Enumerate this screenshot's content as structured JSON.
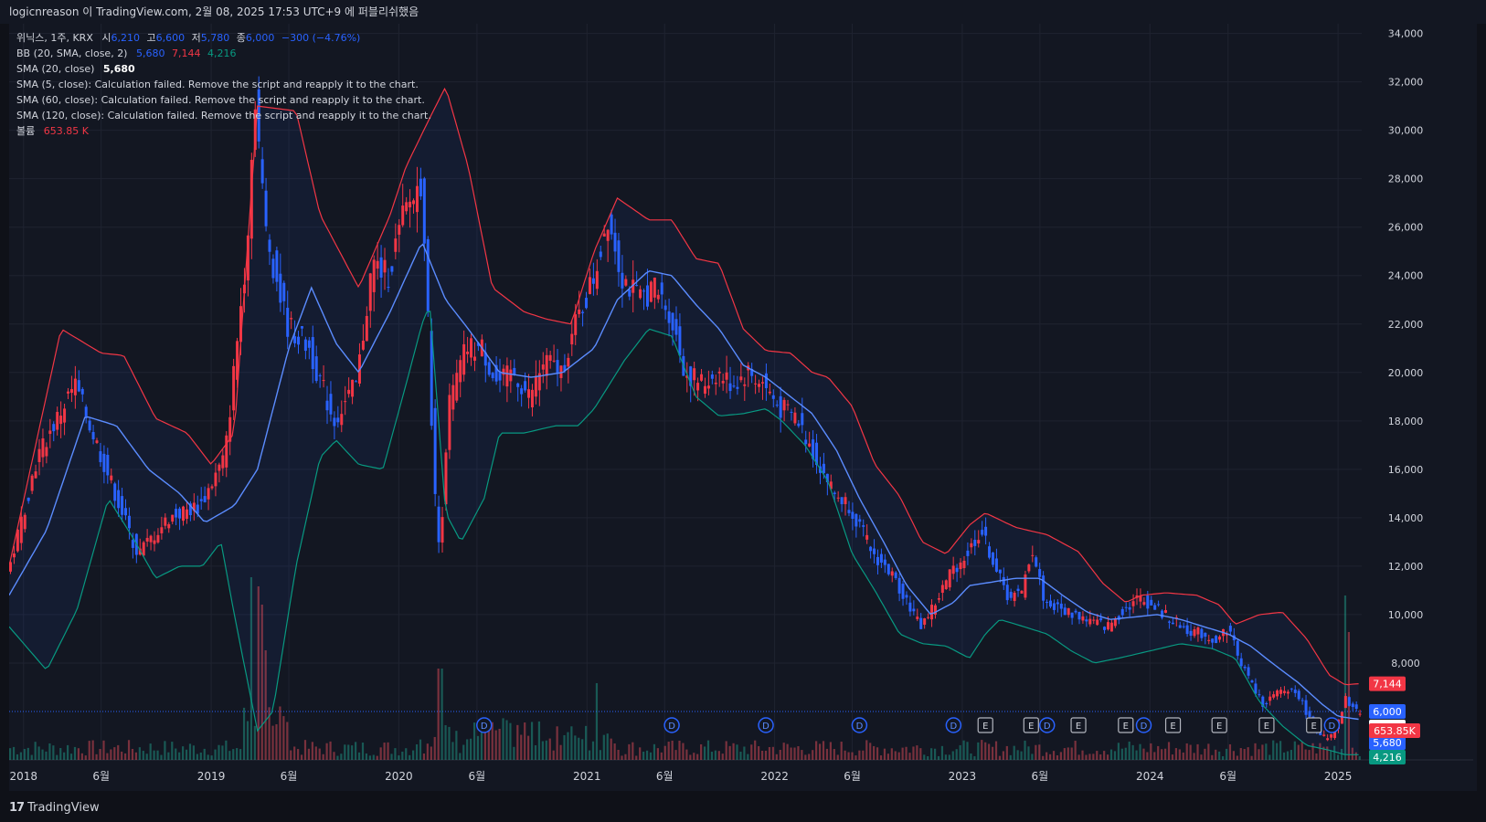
{
  "header": {
    "publish_text": "logicnreason 이 TradingView.com, 2월 08, 2025 17:53 UTC+9 에 퍼블리쉬했음"
  },
  "legend": {
    "symbol": "위닉스, 1주, KRX",
    "o_label": "시",
    "o": "6,210",
    "h_label": "고",
    "h": "6,600",
    "l_label": "저",
    "l": "5,780",
    "c_label": "종",
    "c": "6,000",
    "change": "−300 (−4.76%)",
    "bb_label": "BB (20, SMA, close, 2)",
    "bb_mid": "5,680",
    "bb_up": "7,144",
    "bb_low": "4,216",
    "sma20_label": "SMA (20, close)",
    "sma20_val": "5,680",
    "sma5_msg": "SMA (5, close): Calculation failed. Remove the script and reapply it to the chart.",
    "sma60_msg": "SMA (60, close): Calculation failed. Remove the script and reapply it to the chart.",
    "sma120_msg": "SMA (120, close): Calculation failed. Remove the script and reapply it to the chart.",
    "vol_label": "볼륨",
    "vol_val": "653.85 K"
  },
  "footer": {
    "brand": "TradingView",
    "mark": "17"
  },
  "colors": {
    "up": "#f23645",
    "down": "#2962ff",
    "bb_upper": "#f23645",
    "bb_lower": "#089981",
    "sma": "#5b8cff",
    "grid": "#1f2330",
    "text": "#d1d4dc",
    "bg": "#131722"
  },
  "chart_data": {
    "type": "candlestick",
    "interval": "1주",
    "y_ticks": [
      8000,
      10000,
      12000,
      14000,
      16000,
      18000,
      20000,
      22000,
      24000,
      26000,
      28000,
      30000,
      32000,
      34000
    ],
    "y_tick_labels": [
      "8,000",
      "10,000",
      "12,000",
      "14,000",
      "16,000",
      "18,000",
      "20,000",
      "22,000",
      "24,000",
      "26,000",
      "28,000",
      "30,000",
      "32,000",
      "34,000"
    ],
    "ylim": [
      4000,
      34400
    ],
    "x_range": [
      "2017-12-04",
      "2025-02-16"
    ],
    "x_ticks": [
      {
        "date": "2018-01-01",
        "label": "2018"
      },
      {
        "date": "2018-06-01",
        "label": "6월"
      },
      {
        "date": "2019-01-01",
        "label": "2019"
      },
      {
        "date": "2019-06-01",
        "label": "6월"
      },
      {
        "date": "2020-01-01",
        "label": "2020"
      },
      {
        "date": "2020-06-01",
        "label": "6월"
      },
      {
        "date": "2021-01-01",
        "label": "2021"
      },
      {
        "date": "2021-06-01",
        "label": "6월"
      },
      {
        "date": "2022-01-01",
        "label": "2022"
      },
      {
        "date": "2022-06-01",
        "label": "6월"
      },
      {
        "date": "2023-01-01",
        "label": "2023"
      },
      {
        "date": "2023-06-01",
        "label": "6월"
      },
      {
        "date": "2024-01-01",
        "label": "2024"
      },
      {
        "date": "2024-06-01",
        "label": "6월"
      },
      {
        "date": "2025-01-01",
        "label": "2025"
      }
    ],
    "price_anchors": [
      [
        "2017-12-04",
        11500
      ],
      [
        "2018-02-01",
        16500
      ],
      [
        "2018-04-15",
        19500
      ],
      [
        "2018-06-15",
        16000
      ],
      [
        "2018-08-15",
        12500
      ],
      [
        "2018-10-15",
        14000
      ],
      [
        "2018-12-15",
        14500
      ],
      [
        "2019-02-01",
        16500
      ],
      [
        "2019-03-15",
        25000
      ],
      [
        "2019-04-01",
        31500
      ],
      [
        "2019-04-20",
        26000
      ],
      [
        "2019-06-01",
        22000
      ],
      [
        "2019-07-15",
        21000
      ],
      [
        "2019-09-01",
        18000
      ],
      [
        "2019-10-15",
        19500
      ],
      [
        "2019-11-15",
        24500
      ],
      [
        "2019-12-15",
        24000
      ],
      [
        "2020-01-15",
        26500
      ],
      [
        "2020-02-20",
        28000
      ],
      [
        "2020-03-15",
        15000
      ],
      [
        "2020-03-25",
        12500
      ],
      [
        "2020-04-10",
        18500
      ],
      [
        "2020-05-15",
        21000
      ],
      [
        "2020-06-15",
        21000
      ],
      [
        "2020-07-15",
        19500
      ],
      [
        "2020-08-15",
        20000
      ],
      [
        "2020-09-15",
        19000
      ],
      [
        "2020-10-15",
        20500
      ],
      [
        "2020-11-15",
        20000
      ],
      [
        "2020-12-15",
        22000
      ],
      [
        "2021-01-20",
        24000
      ],
      [
        "2021-02-15",
        26500
      ],
      [
        "2021-03-15",
        24000
      ],
      [
        "2021-04-15",
        23000
      ],
      [
        "2021-05-15",
        23500
      ],
      [
        "2021-06-15",
        22500
      ],
      [
        "2021-07-15",
        20000
      ],
      [
        "2021-08-20",
        19500
      ],
      [
        "2021-09-15",
        20000
      ],
      [
        "2021-10-15",
        19500
      ],
      [
        "2021-11-15",
        20000
      ],
      [
        "2021-12-15",
        19500
      ],
      [
        "2022-01-15",
        18500
      ],
      [
        "2022-02-15",
        18200
      ],
      [
        "2022-03-15",
        17000
      ],
      [
        "2022-05-01",
        15000
      ],
      [
        "2022-06-01",
        14500
      ],
      [
        "2022-07-15",
        12500
      ],
      [
        "2022-08-15",
        11800
      ],
      [
        "2022-09-15",
        10800
      ],
      [
        "2022-10-15",
        9500
      ],
      [
        "2022-11-15",
        10500
      ],
      [
        "2022-12-15",
        11800
      ],
      [
        "2023-01-15",
        12500
      ],
      [
        "2023-02-10",
        13500
      ],
      [
        "2023-03-01",
        12500
      ],
      [
        "2023-04-01",
        10800
      ],
      [
        "2023-05-01",
        10800
      ],
      [
        "2023-05-20",
        12800
      ],
      [
        "2023-06-15",
        10500
      ],
      [
        "2023-07-15",
        10200
      ],
      [
        "2023-08-15",
        10000
      ],
      [
        "2023-09-15",
        9700
      ],
      [
        "2023-10-15",
        9500
      ],
      [
        "2023-11-15",
        10200
      ],
      [
        "2023-12-15",
        10700
      ],
      [
        "2024-01-15",
        10300
      ],
      [
        "2024-02-15",
        9800
      ],
      [
        "2024-03-15",
        9400
      ],
      [
        "2024-04-15",
        9200
      ],
      [
        "2024-05-15",
        8900
      ],
      [
        "2024-06-05",
        9500
      ],
      [
        "2024-07-01",
        8000
      ],
      [
        "2024-08-10",
        6300
      ],
      [
        "2024-09-15",
        6800
      ],
      [
        "2024-10-15",
        6900
      ],
      [
        "2024-11-15",
        5500
      ],
      [
        "2024-12-15",
        4800
      ],
      [
        "2025-01-01",
        5200
      ],
      [
        "2025-01-20",
        6500
      ],
      [
        "2025-02-09",
        6000
      ]
    ],
    "bb_upper": [
      [
        "2017-12-04",
        12000
      ],
      [
        "2018-03-15",
        21800
      ],
      [
        "2018-06-01",
        20800
      ],
      [
        "2018-07-15",
        20700
      ],
      [
        "2018-09-15",
        18100
      ],
      [
        "2018-11-15",
        17500
      ],
      [
        "2019-01-01",
        16200
      ],
      [
        "2019-02-15",
        17500
      ],
      [
        "2019-04-01",
        31000
      ],
      [
        "2019-06-15",
        30800
      ],
      [
        "2019-08-01",
        26500
      ],
      [
        "2019-10-15",
        23500
      ],
      [
        "2019-12-15",
        26500
      ],
      [
        "2020-01-15",
        28500
      ],
      [
        "2020-03-01",
        30500
      ],
      [
        "2020-04-01",
        31800
      ],
      [
        "2020-05-15",
        28500
      ],
      [
        "2020-07-01",
        23500
      ],
      [
        "2020-09-01",
        22500
      ],
      [
        "2020-10-15",
        22200
      ],
      [
        "2020-12-01",
        22000
      ],
      [
        "2021-01-15",
        25000
      ],
      [
        "2021-03-01",
        27200
      ],
      [
        "2021-05-01",
        26300
      ],
      [
        "2021-06-15",
        26300
      ],
      [
        "2021-08-01",
        24700
      ],
      [
        "2021-09-15",
        24500
      ],
      [
        "2021-11-01",
        21800
      ],
      [
        "2021-12-15",
        20900
      ],
      [
        "2022-02-01",
        20800
      ],
      [
        "2022-03-15",
        20000
      ],
      [
        "2022-04-15",
        19800
      ],
      [
        "2022-06-01",
        18600
      ],
      [
        "2022-07-15",
        16200
      ],
      [
        "2022-09-01",
        14900
      ],
      [
        "2022-10-15",
        13000
      ],
      [
        "2022-12-01",
        12500
      ],
      [
        "2023-01-15",
        13700
      ],
      [
        "2023-02-15",
        14200
      ],
      [
        "2023-04-15",
        13600
      ],
      [
        "2023-06-15",
        13300
      ],
      [
        "2023-08-15",
        12600
      ],
      [
        "2023-10-01",
        11300
      ],
      [
        "2023-11-15",
        10500
      ],
      [
        "2023-12-15",
        10800
      ],
      [
        "2024-02-01",
        10900
      ],
      [
        "2024-04-01",
        10800
      ],
      [
        "2024-05-15",
        10400
      ],
      [
        "2024-06-15",
        9600
      ],
      [
        "2024-08-01",
        10000
      ],
      [
        "2024-09-15",
        10100
      ],
      [
        "2024-11-01",
        9000
      ],
      [
        "2024-12-15",
        7500
      ],
      [
        "2025-01-15",
        7100
      ],
      [
        "2025-02-09",
        7144
      ]
    ],
    "bb_middle": [
      [
        "2017-12-04",
        10800
      ],
      [
        "2018-02-15",
        13500
      ],
      [
        "2018-05-01",
        18200
      ],
      [
        "2018-07-01",
        17800
      ],
      [
        "2018-09-01",
        16000
      ],
      [
        "2018-11-01",
        15000
      ],
      [
        "2018-12-20",
        13800
      ],
      [
        "2019-02-15",
        14500
      ],
      [
        "2019-04-01",
        16000
      ],
      [
        "2019-06-01",
        21000
      ],
      [
        "2019-07-15",
        23500
      ],
      [
        "2019-09-01",
        21200
      ],
      [
        "2019-10-15",
        20000
      ],
      [
        "2019-12-15",
        22500
      ],
      [
        "2020-02-15",
        25400
      ],
      [
        "2020-04-01",
        23000
      ],
      [
        "2020-05-15",
        21800
      ],
      [
        "2020-07-15",
        20000
      ],
      [
        "2020-09-15",
        19800
      ],
      [
        "2020-11-15",
        20000
      ],
      [
        "2021-01-15",
        21000
      ],
      [
        "2021-03-01",
        23000
      ],
      [
        "2021-05-01",
        24200
      ],
      [
        "2021-06-15",
        24000
      ],
      [
        "2021-08-01",
        22800
      ],
      [
        "2021-09-15",
        21800
      ],
      [
        "2021-11-01",
        20300
      ],
      [
        "2021-12-15",
        19800
      ],
      [
        "2022-02-01",
        19000
      ],
      [
        "2022-03-15",
        18300
      ],
      [
        "2022-05-01",
        16800
      ],
      [
        "2022-06-15",
        14800
      ],
      [
        "2022-08-01",
        13000
      ],
      [
        "2022-09-15",
        11200
      ],
      [
        "2022-11-01",
        10000
      ],
      [
        "2022-12-15",
        10500
      ],
      [
        "2023-01-15",
        11200
      ],
      [
        "2023-02-15",
        11300
      ],
      [
        "2023-04-15",
        11500
      ],
      [
        "2023-06-01",
        11500
      ],
      [
        "2023-07-15",
        10800
      ],
      [
        "2023-09-01",
        10100
      ],
      [
        "2023-10-15",
        9800
      ],
      [
        "2023-12-01",
        9900
      ],
      [
        "2024-01-15",
        10000
      ],
      [
        "2024-03-01",
        9800
      ],
      [
        "2024-04-15",
        9500
      ],
      [
        "2024-06-01",
        9200
      ],
      [
        "2024-07-15",
        8700
      ],
      [
        "2024-09-01",
        7900
      ],
      [
        "2024-10-15",
        7200
      ],
      [
        "2024-12-01",
        6300
      ],
      [
        "2025-01-01",
        5800
      ],
      [
        "2025-02-09",
        5680
      ]
    ],
    "bb_lower": [
      [
        "2017-12-04",
        9500
      ],
      [
        "2018-02-15",
        7700
      ],
      [
        "2018-04-15",
        10200
      ],
      [
        "2018-06-15",
        14800
      ],
      [
        "2018-08-01",
        13200
      ],
      [
        "2018-09-15",
        11500
      ],
      [
        "2018-11-01",
        12000
      ],
      [
        "2018-12-15",
        12000
      ],
      [
        "2019-01-20",
        13000
      ],
      [
        "2019-02-15",
        10000
      ],
      [
        "2019-03-01",
        8500
      ],
      [
        "2019-04-01",
        5200
      ],
      [
        "2019-05-01",
        6000
      ],
      [
        "2019-06-15",
        12000
      ],
      [
        "2019-08-01",
        16500
      ],
      [
        "2019-09-01",
        17200
      ],
      [
        "2019-10-15",
        16200
      ],
      [
        "2019-12-01",
        16000
      ],
      [
        "2020-01-15",
        19500
      ],
      [
        "2020-02-15",
        22000
      ],
      [
        "2020-03-01",
        22800
      ],
      [
        "2020-04-01",
        14200
      ],
      [
        "2020-05-01",
        13000
      ],
      [
        "2020-06-15",
        14800
      ],
      [
        "2020-07-15",
        17500
      ],
      [
        "2020-09-01",
        17500
      ],
      [
        "2020-11-01",
        17800
      ],
      [
        "2020-12-15",
        17800
      ],
      [
        "2021-01-15",
        18500
      ],
      [
        "2021-03-15",
        20500
      ],
      [
        "2021-05-01",
        21800
      ],
      [
        "2021-06-15",
        21500
      ],
      [
        "2021-08-01",
        19000
      ],
      [
        "2021-09-15",
        18200
      ],
      [
        "2021-11-01",
        18300
      ],
      [
        "2021-12-15",
        18500
      ],
      [
        "2022-01-15",
        18000
      ],
      [
        "2022-03-01",
        17000
      ],
      [
        "2022-04-15",
        15500
      ],
      [
        "2022-06-01",
        12500
      ],
      [
        "2022-07-15",
        11000
      ],
      [
        "2022-09-01",
        9200
      ],
      [
        "2022-10-15",
        8800
      ],
      [
        "2022-12-01",
        8700
      ],
      [
        "2023-01-15",
        8200
      ],
      [
        "2023-02-15",
        9200
      ],
      [
        "2023-03-15",
        9800
      ],
      [
        "2023-05-01",
        9500
      ],
      [
        "2023-06-15",
        9200
      ],
      [
        "2023-08-01",
        8500
      ],
      [
        "2023-09-15",
        8000
      ],
      [
        "2023-11-01",
        8200
      ],
      [
        "2024-01-01",
        8500
      ],
      [
        "2024-03-01",
        8800
      ],
      [
        "2024-05-01",
        8600
      ],
      [
        "2024-06-15",
        8200
      ],
      [
        "2024-08-01",
        6400
      ],
      [
        "2024-09-15",
        5400
      ],
      [
        "2024-11-01",
        4600
      ],
      [
        "2024-12-15",
        4400
      ],
      [
        "2025-01-15",
        4216
      ],
      [
        "2025-02-09",
        4216
      ]
    ],
    "volume_spikes": [
      [
        "2019-03-20",
        1.0
      ],
      [
        "2019-04-01",
        0.95
      ],
      [
        "2019-04-08",
        0.85
      ],
      [
        "2019-04-15",
        0.6
      ],
      [
        "2020-03-20",
        0.5
      ],
      [
        "2021-01-20",
        0.42
      ],
      [
        "2025-01-13",
        0.9
      ],
      [
        "2025-01-20",
        0.7
      ]
    ],
    "events": [
      {
        "date": "2020-06-15",
        "label": "D"
      },
      {
        "date": "2021-06-15",
        "label": "D"
      },
      {
        "date": "2021-12-15",
        "label": "D"
      },
      {
        "date": "2022-06-15",
        "label": "D"
      },
      {
        "date": "2022-12-15",
        "label": "D"
      },
      {
        "date": "2023-06-15",
        "label": "D"
      },
      {
        "date": "2023-02-15",
        "label": "E"
      },
      {
        "date": "2023-05-15",
        "label": "E"
      },
      {
        "date": "2023-08-15",
        "label": "E"
      },
      {
        "date": "2023-11-15",
        "label": "E"
      },
      {
        "date": "2023-12-20",
        "label": "D"
      },
      {
        "date": "2024-02-15",
        "label": "E"
      },
      {
        "date": "2024-05-15",
        "label": "E"
      },
      {
        "date": "2024-08-15",
        "label": "E"
      },
      {
        "date": "2024-11-15",
        "label": "E"
      },
      {
        "date": "2024-12-20",
        "label": "D"
      }
    ],
    "price_labels": [
      {
        "value": 7144,
        "label": "7,144",
        "kind": "bb_up"
      },
      {
        "value": 6000,
        "label": "6,000",
        "kind": "close"
      },
      {
        "value": 5680,
        "label": "5,680",
        "kind": "sma"
      },
      {
        "value": 5680,
        "label": "5,680",
        "kind": "bb_mid"
      },
      {
        "value": 4216,
        "label": "4,216",
        "kind": "bb_low"
      },
      {
        "value": null,
        "label": "653.85K",
        "kind": "volume"
      }
    ],
    "last_close": 6000
  }
}
